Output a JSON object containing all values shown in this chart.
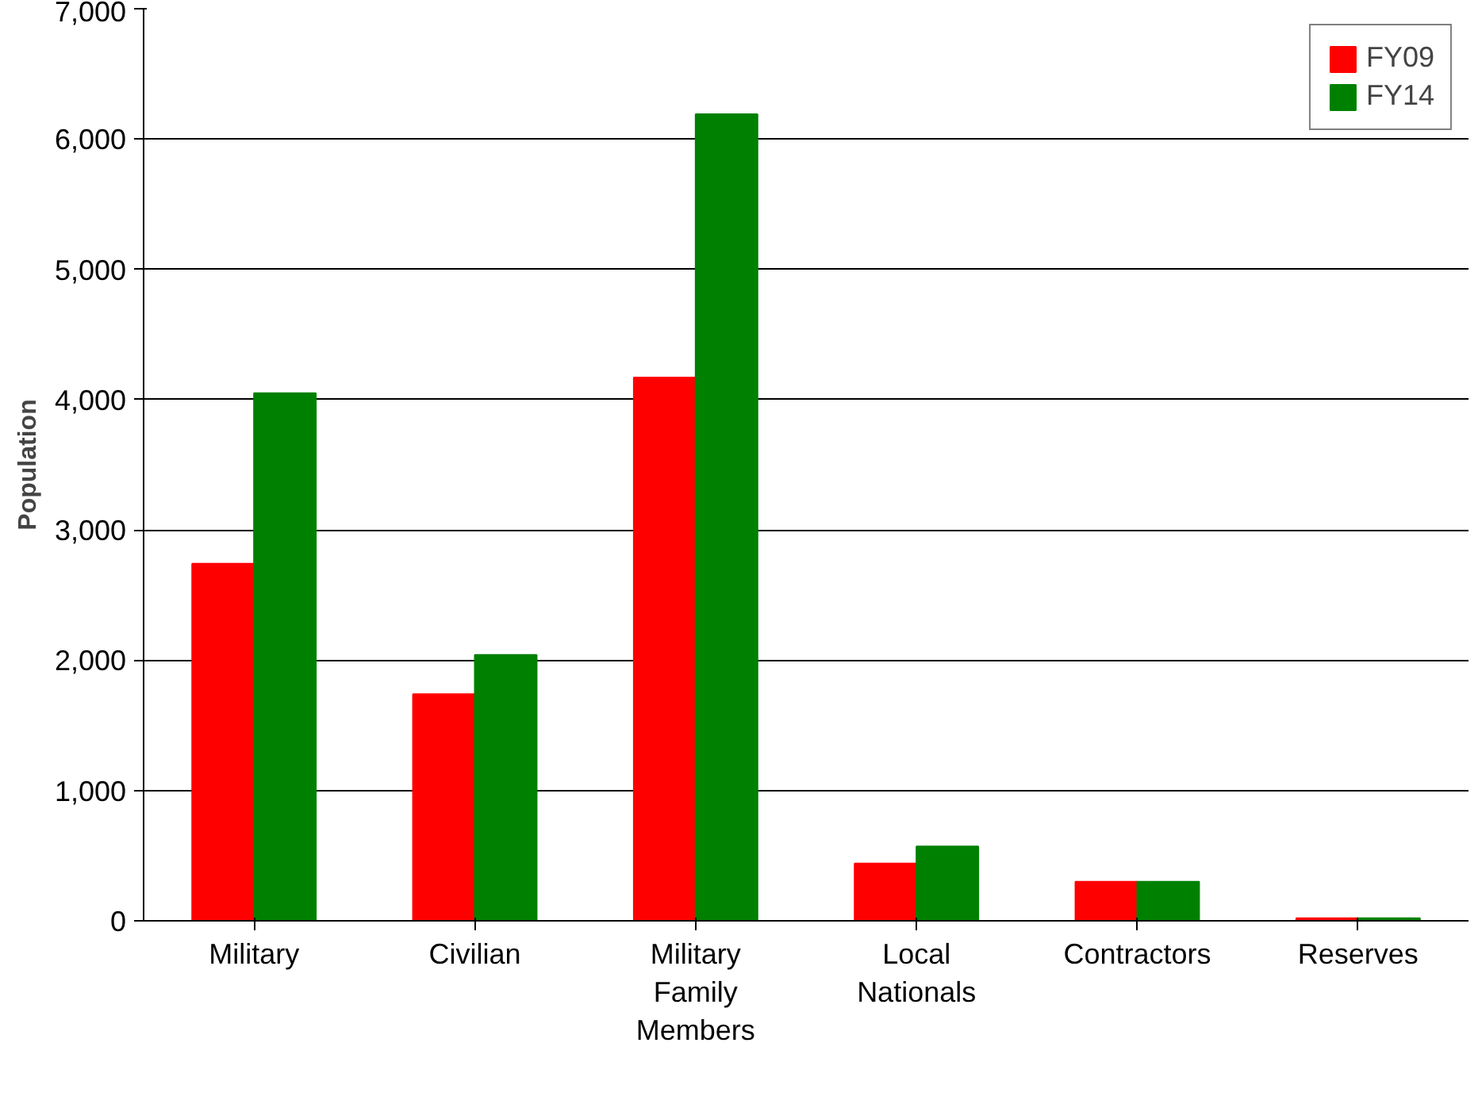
{
  "chart_data": {
    "type": "bar",
    "ylabel": "Population",
    "categories": [
      "Military",
      "Civilian",
      "Military Family Members",
      "Local Nationals",
      "Contractors",
      "Reserves"
    ],
    "series": [
      {
        "name": "FY09",
        "color": "#ff0000",
        "values": [
          2740,
          1740,
          4170,
          440,
          300,
          20
        ]
      },
      {
        "name": "FY14",
        "color": "#008000",
        "values": [
          4050,
          2040,
          6190,
          570,
          300,
          20
        ]
      }
    ],
    "ylim": [
      0,
      7000
    ],
    "yticks": [
      {
        "value": 0,
        "label": "0"
      },
      {
        "value": 1000,
        "label": "1,000"
      },
      {
        "value": 2000,
        "label": "2,000"
      },
      {
        "value": 3000,
        "label": "3,000"
      },
      {
        "value": 4000,
        "label": "4,000"
      },
      {
        "value": 5000,
        "label": "5,000"
      },
      {
        "value": 6000,
        "label": "6,000"
      },
      {
        "value": 7000,
        "label": "7,000"
      }
    ],
    "grid": "y",
    "legend": "top right"
  }
}
